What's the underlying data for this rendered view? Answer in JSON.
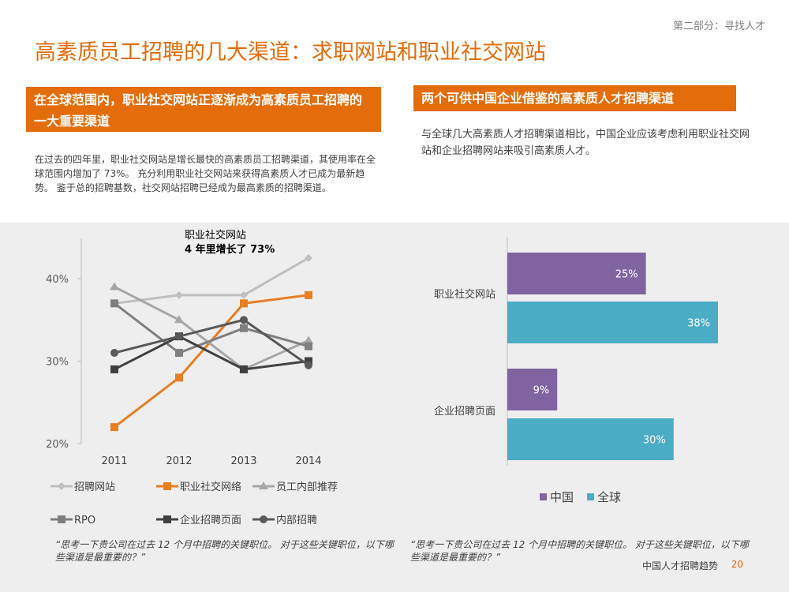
{
  "header": {
    "section": "第二部分：寻找人才",
    "title": "高素质员工招聘的几大渠道：求职网站和职业社交网站"
  },
  "left": {
    "banner": "在全球范围内，职业社交网站正逐渐成为高素质员工招聘的一大重要渠道",
    "paragraph": "在过去的四年里，职业社交网站是增长最快的高素质员工招聘渠道，其使用率在全球范围内增加了 73%。 充分利用职业社交网站来获得高素质人才已成为最新趋势。 鉴于总的招聘基数，社交网站招聘已经成为最高素质的招聘渠道。",
    "quote": "“思考一下贵公司在过去 12 个月中招聘的关键职位。 对于这些关键职位，以下哪些渠道是最重要的？”"
  },
  "right": {
    "banner": "两个可供中国企业借鉴的高素质人才招聘渠道",
    "paragraph": "与全球几大高素质人才招聘渠道相比，中国企业应该考虑利用职业社交网站和企业招聘网站来吸引高素质人才。",
    "quote": "“思考一下贵公司在过去 12 个月中招聘的关键职位。 对于这些关键职位，以下哪些渠道是最重要的？”"
  },
  "footer": {
    "text": "中国人才招聘趋势",
    "page": "20"
  },
  "chart_data": [
    {
      "type": "line",
      "x": [
        "2011",
        "2012",
        "2013",
        "2014"
      ],
      "ylim": [
        20,
        45
      ],
      "yticks": [
        "20%",
        "30%",
        "40%"
      ],
      "ytick_values": [
        20,
        30,
        40
      ],
      "annotation": {
        "line1": "职业社交网站",
        "line2": "4 年里增长了 73%"
      },
      "series": [
        {
          "name": "招聘网站",
          "values": [
            37,
            38,
            38,
            42.5
          ],
          "color": "#bfbfbf",
          "marker": "diamond"
        },
        {
          "name": "职业社交网络",
          "values": [
            22,
            28,
            37,
            38
          ],
          "color": "#e67e22",
          "marker": "square"
        },
        {
          "name": "员工内部推荐",
          "values": [
            39,
            35,
            29,
            32.5
          ],
          "color": "#a6a6a6",
          "marker": "triangle"
        },
        {
          "name": "RPO",
          "values": [
            37,
            31,
            34,
            31.8
          ],
          "color": "#7f7f7f",
          "marker": "square"
        },
        {
          "name": "企业招聘页面",
          "values": [
            29,
            33,
            29,
            30
          ],
          "color": "#404040",
          "marker": "square"
        },
        {
          "name": "内部招聘",
          "values": [
            31,
            33,
            35,
            29.5
          ],
          "color": "#595959",
          "marker": "circle"
        }
      ]
    },
    {
      "type": "bar",
      "orientation": "horizontal",
      "categories": [
        "职业社交网站",
        "企业招聘页面"
      ],
      "xlim": [
        0,
        40
      ],
      "series": [
        {
          "name": "中国",
          "values": [
            25,
            9
          ],
          "labels": [
            "25%",
            "9%"
          ],
          "color": "#8064a2"
        },
        {
          "name": "全球",
          "values": [
            38,
            30
          ],
          "labels": [
            "38%",
            "30%"
          ],
          "color": "#4bacc6"
        }
      ]
    }
  ]
}
